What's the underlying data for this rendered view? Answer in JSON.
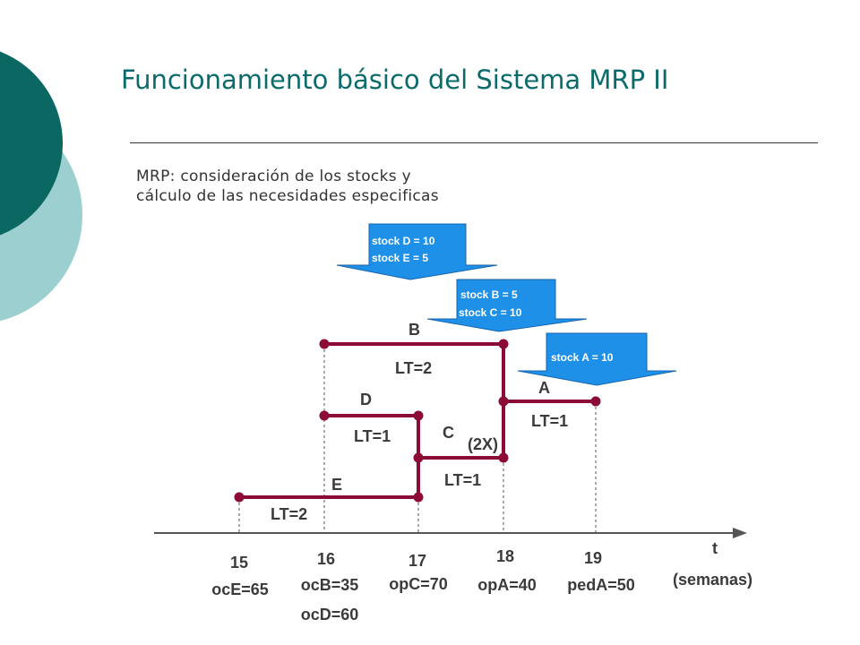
{
  "title": "Funcionamiento básico del Sistema MRP II",
  "subtitle": [
    "MRP: consideración de los stocks y",
    "cálculo de las necesidades especificas"
  ],
  "stock_boxes": [
    {
      "lines": [
        "stock D = 10",
        "stock E = 5"
      ]
    },
    {
      "lines": [
        "stock B = 5",
        "stock C = 10"
      ]
    },
    {
      "lines": [
        "stock A = 10"
      ]
    }
  ],
  "items": {
    "A": {
      "label": "A",
      "lt": "LT=1"
    },
    "B": {
      "label": "B",
      "lt": "LT=2"
    },
    "C": {
      "label": "C",
      "lt": "LT=1",
      "mult": "(2X)"
    },
    "D": {
      "label": "D",
      "lt": "LT=1"
    },
    "E": {
      "label": "E",
      "lt": "LT=2"
    }
  },
  "axis": {
    "label": "t",
    "unit": "(semanas)",
    "weeks": [
      {
        "week": "15",
        "orders": [
          "ocE=65"
        ]
      },
      {
        "week": "16",
        "orders": [
          "ocB=35",
          "ocD=60"
        ]
      },
      {
        "week": "17",
        "orders": [
          "opC=70"
        ]
      },
      {
        "week": "18",
        "orders": [
          "opA=40"
        ]
      },
      {
        "week": "19",
        "orders": [
          "pedA=50"
        ]
      }
    ]
  },
  "colors": {
    "title": "#0b6b6b",
    "dark_teal": "#0b6762",
    "light_teal": "#9ccfcf",
    "lines": "#8b0a36",
    "arrow_fill": "#1e90e8"
  }
}
